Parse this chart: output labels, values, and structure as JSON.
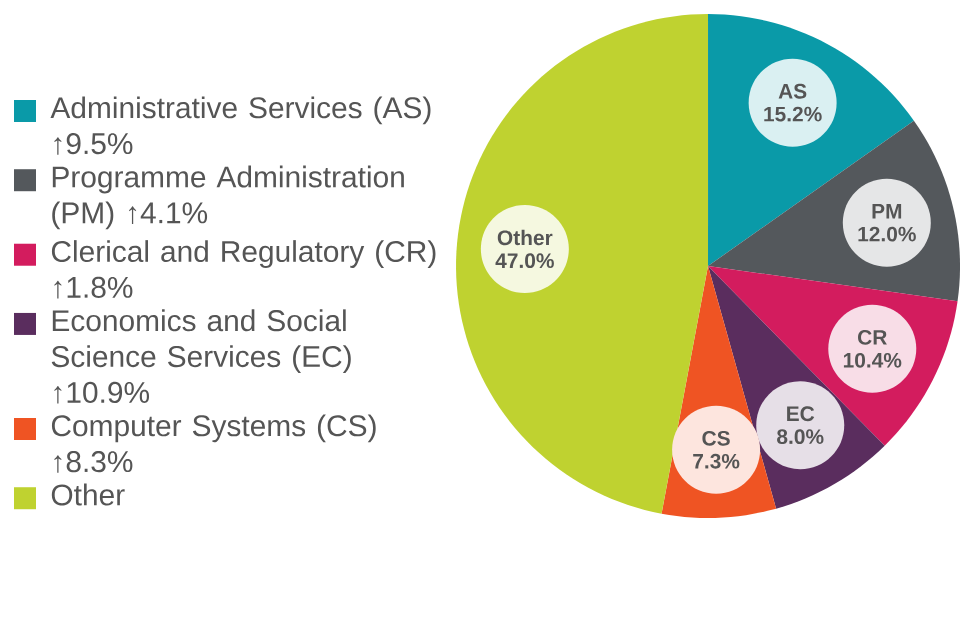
{
  "chart_data": {
    "type": "pie",
    "categories": [
      "Administrative Services (AS) ↑9.5%",
      "Programme Administration (PM) ↑4.1%",
      "Clerical and Regulatory (CR) ↑1.8%",
      "Economics and Social Science Services (EC) ↑10.9%",
      "Computer Systems (CS) ↑8.3%",
      "Other"
    ],
    "values": [
      15.2,
      12.0,
      10.4,
      8.0,
      7.3,
      47.0
    ],
    "colors": [
      "#0a9aa8",
      "#54585c",
      "#d31c5e",
      "#5a2d5e",
      "#ef5423",
      "#bfd230"
    ],
    "value_labels": [
      "AS 15.2%",
      "PM 12.0%",
      "CR 10.4%",
      "EC 8.0%",
      "CS 7.3%",
      "Other 47.0%"
    ],
    "legend": "left"
  }
}
